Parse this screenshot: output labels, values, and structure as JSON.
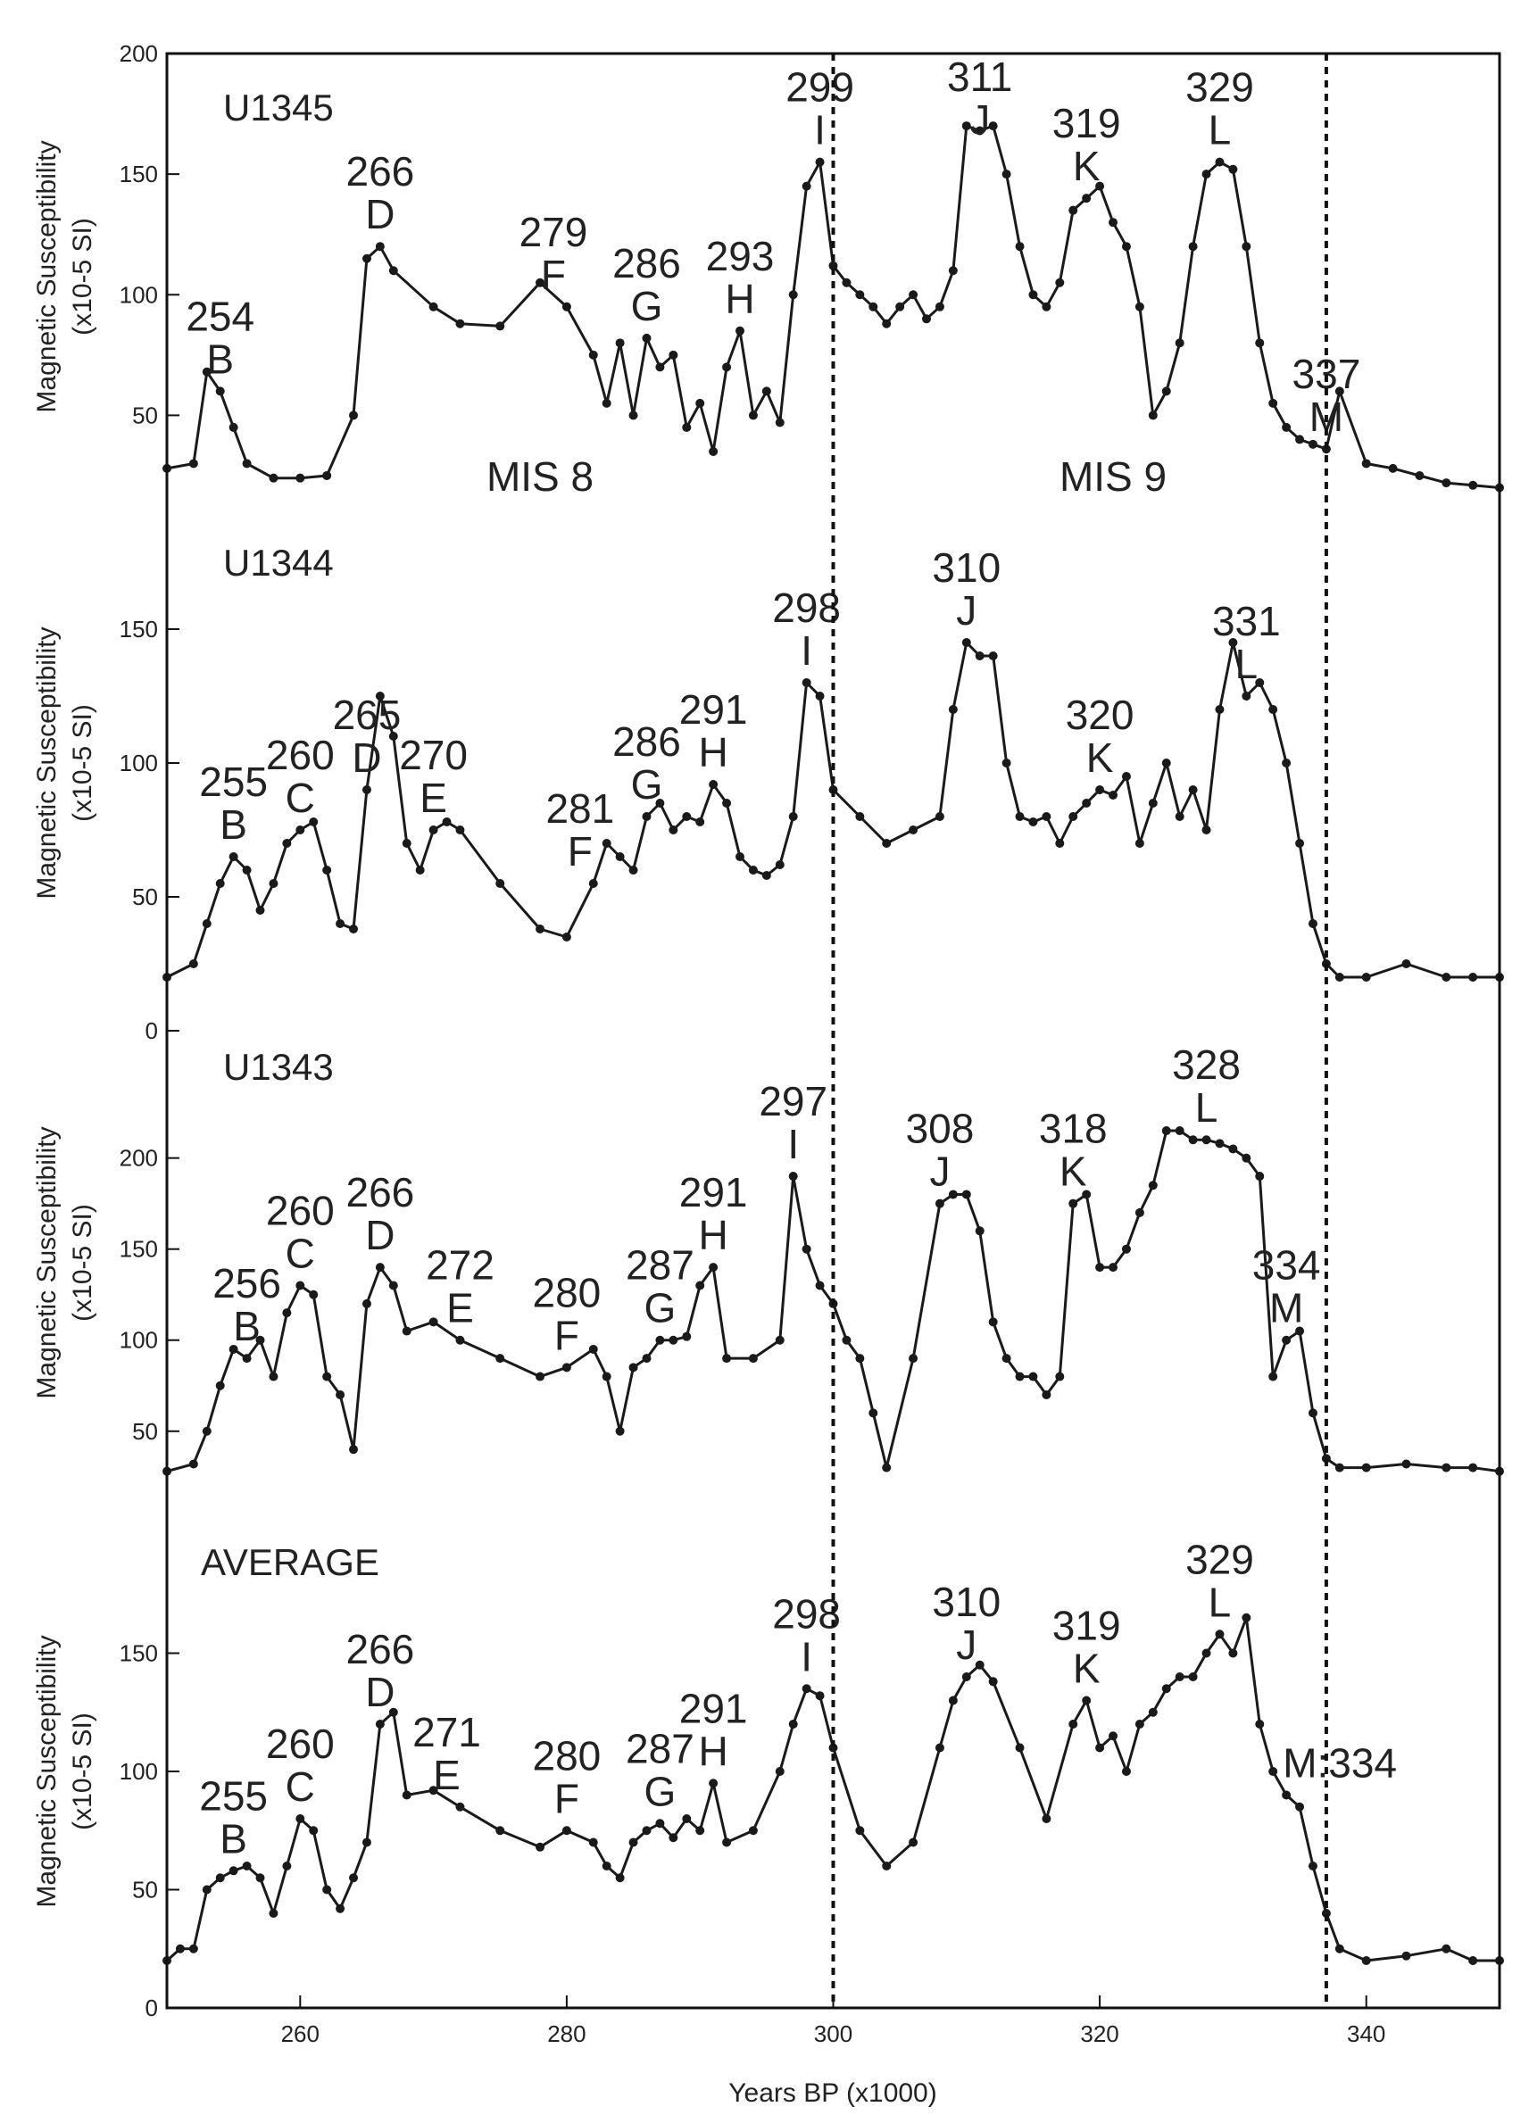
{
  "chart_data": {
    "type": "line",
    "xlabel": "Years BP (x1000)",
    "xlim": [
      250,
      350
    ],
    "xticks": [
      260,
      280,
      300,
      320,
      340
    ],
    "vlines": [
      300,
      337
    ],
    "mis_labels": [
      {
        "text": "MIS 8",
        "x": 278
      },
      {
        "text": "MIS 9",
        "x": 321
      }
    ],
    "panels": [
      {
        "site": "U1345",
        "ylabel": [
          "Magnetic Susceptibility",
          "(x10-5 SI)"
        ],
        "ylim": [
          15,
          200
        ],
        "yticks": [
          50,
          100,
          150,
          200
        ],
        "x": [
          250,
          252,
          253,
          254,
          255,
          256,
          258,
          260,
          262,
          264,
          265,
          266,
          267,
          270,
          272,
          275,
          278,
          280,
          282,
          283,
          284,
          285,
          286,
          287,
          288,
          289,
          290,
          291,
          292,
          293,
          294,
          295,
          296,
          297,
          298,
          299,
          300,
          301,
          302,
          303,
          304,
          305,
          306,
          307,
          308,
          309,
          310,
          311,
          312,
          313,
          314,
          315,
          316,
          317,
          318,
          319,
          320,
          321,
          322,
          323,
          324,
          325,
          326,
          327,
          328,
          329,
          330,
          331,
          332,
          333,
          334,
          335,
          336,
          337,
          338,
          340,
          342,
          344,
          346,
          348,
          350
        ],
        "values": [
          28,
          30,
          68,
          60,
          45,
          30,
          24,
          24,
          25,
          50,
          115,
          120,
          110,
          95,
          88,
          87,
          105,
          95,
          75,
          55,
          80,
          50,
          82,
          70,
          75,
          45,
          55,
          35,
          70,
          85,
          50,
          60,
          47,
          100,
          145,
          155,
          112,
          105,
          100,
          95,
          88,
          95,
          100,
          90,
          95,
          110,
          170,
          168,
          170,
          150,
          120,
          100,
          95,
          105,
          135,
          140,
          145,
          130,
          120,
          95,
          50,
          60,
          80,
          120,
          150,
          155,
          152,
          120,
          80,
          55,
          45,
          40,
          38,
          36,
          60,
          30,
          28,
          25,
          22,
          21,
          20
        ],
        "annotations": [
          {
            "num": "254",
            "letter": "B",
            "x": 254
          },
          {
            "num": "266",
            "letter": "D",
            "x": 266
          },
          {
            "num": "279",
            "letter": "F",
            "x": 279
          },
          {
            "num": "286",
            "letter": "G",
            "x": 286
          },
          {
            "num": "293",
            "letter": "H",
            "x": 293
          },
          {
            "num": "299",
            "letter": "I",
            "x": 299
          },
          {
            "num": "311",
            "letter": "J",
            "x": 311
          },
          {
            "num": "319",
            "letter": "K",
            "x": 319
          },
          {
            "num": "329",
            "letter": "L",
            "x": 329
          },
          {
            "num": "337",
            "letter": "M",
            "x": 337
          }
        ],
        "show_mis": true
      },
      {
        "site": "U1344",
        "ylabel": [
          "Magnetic Susceptibility",
          "(x10-5 SI)"
        ],
        "ylim": [
          15,
          185
        ],
        "yticks": [
          0,
          50,
          100,
          150
        ],
        "x": [
          250,
          252,
          253,
          254,
          255,
          256,
          257,
          258,
          259,
          260,
          261,
          262,
          263,
          264,
          265,
          266,
          267,
          268,
          269,
          270,
          271,
          272,
          275,
          278,
          280,
          282,
          283,
          284,
          285,
          286,
          287,
          288,
          289,
          290,
          291,
          292,
          293,
          294,
          295,
          296,
          297,
          298,
          299,
          300,
          302,
          304,
          306,
          308,
          309,
          310,
          311,
          312,
          313,
          314,
          315,
          316,
          317,
          318,
          319,
          320,
          321,
          322,
          323,
          324,
          325,
          326,
          327,
          328,
          329,
          330,
          331,
          332,
          333,
          334,
          335,
          336,
          337,
          338,
          340,
          343,
          346,
          348,
          350
        ],
        "values": [
          20,
          25,
          40,
          55,
          65,
          60,
          45,
          55,
          70,
          75,
          78,
          60,
          40,
          38,
          90,
          125,
          110,
          70,
          60,
          75,
          78,
          75,
          55,
          38,
          35,
          55,
          70,
          65,
          60,
          80,
          85,
          75,
          80,
          78,
          92,
          85,
          65,
          60,
          58,
          62,
          80,
          130,
          125,
          90,
          80,
          70,
          75,
          80,
          120,
          145,
          140,
          140,
          100,
          80,
          78,
          80,
          70,
          80,
          85,
          90,
          88,
          95,
          70,
          85,
          100,
          80,
          90,
          75,
          120,
          145,
          125,
          130,
          120,
          100,
          70,
          40,
          25,
          20,
          20,
          25,
          20,
          20,
          20
        ],
        "annotations": [
          {
            "num": "255",
            "letter": "B",
            "x": 255
          },
          {
            "num": "260",
            "letter": "C",
            "x": 260
          },
          {
            "num": "265",
            "letter": "D",
            "x": 265
          },
          {
            "num": "270",
            "letter": "E",
            "x": 270
          },
          {
            "num": "281",
            "letter": "F",
            "x": 281
          },
          {
            "num": "286",
            "letter": "G",
            "x": 286
          },
          {
            "num": "291",
            "letter": "H",
            "x": 291
          },
          {
            "num": "298",
            "letter": "I",
            "x": 298
          },
          {
            "num": "310",
            "letter": "J",
            "x": 310
          },
          {
            "num": "320",
            "letter": "K",
            "x": 320
          },
          {
            "num": "331",
            "letter": "L",
            "x": 331
          }
        ],
        "show_mis": false
      },
      {
        "site": "U1343",
        "ylabel": [
          "Magnetic Susceptibility",
          "(x10-5 SI)"
        ],
        "ylim": [
          20,
          265
        ],
        "yticks": [
          50,
          100,
          150,
          200
        ],
        "x": [
          250,
          252,
          253,
          254,
          255,
          256,
          257,
          258,
          259,
          260,
          261,
          262,
          263,
          264,
          265,
          266,
          267,
          268,
          270,
          272,
          275,
          278,
          280,
          282,
          283,
          284,
          285,
          286,
          287,
          288,
          289,
          290,
          291,
          292,
          294,
          296,
          297,
          298,
          299,
          300,
          301,
          302,
          303,
          304,
          306,
          308,
          309,
          310,
          311,
          312,
          313,
          314,
          315,
          316,
          317,
          318,
          319,
          320,
          321,
          322,
          323,
          324,
          325,
          326,
          327,
          328,
          329,
          330,
          331,
          332,
          333,
          334,
          335,
          336,
          337,
          338,
          340,
          343,
          346,
          348,
          350
        ],
        "values": [
          28,
          32,
          50,
          75,
          95,
          90,
          100,
          80,
          115,
          130,
          125,
          80,
          70,
          40,
          120,
          140,
          130,
          105,
          110,
          100,
          90,
          80,
          85,
          95,
          80,
          50,
          85,
          90,
          100,
          100,
          102,
          130,
          140,
          90,
          90,
          100,
          190,
          150,
          130,
          120,
          100,
          90,
          60,
          30,
          90,
          175,
          180,
          180,
          160,
          110,
          90,
          80,
          80,
          70,
          80,
          175,
          180,
          140,
          140,
          150,
          170,
          185,
          215,
          215,
          210,
          210,
          208,
          205,
          200,
          190,
          80,
          100,
          105,
          60,
          35,
          30,
          30,
          32,
          30,
          30,
          28
        ],
        "annotations": [
          {
            "num": "256",
            "letter": "B",
            "x": 256
          },
          {
            "num": "260",
            "letter": "C",
            "x": 260
          },
          {
            "num": "266",
            "letter": "D",
            "x": 266
          },
          {
            "num": "272",
            "letter": "E",
            "x": 272
          },
          {
            "num": "280",
            "letter": "F",
            "x": 280
          },
          {
            "num": "287",
            "letter": "G",
            "x": 287
          },
          {
            "num": "291",
            "letter": "H",
            "x": 291
          },
          {
            "num": "297",
            "letter": "I",
            "x": 297
          },
          {
            "num": "308",
            "letter": "J",
            "x": 308
          },
          {
            "num": "318",
            "letter": "K",
            "x": 318
          },
          {
            "num": "328",
            "letter": "L",
            "x": 328
          },
          {
            "num": "334",
            "letter": "M",
            "x": 334
          }
        ],
        "show_mis": false
      },
      {
        "site": "AVERAGE",
        "ylabel": [
          "Magnetic Susceptibility",
          "(x10-5 SI)"
        ],
        "ylim": [
          0,
          200
        ],
        "yticks": [
          0,
          50,
          100,
          150
        ],
        "x": [
          250,
          251,
          252,
          253,
          254,
          255,
          256,
          257,
          258,
          259,
          260,
          261,
          262,
          263,
          264,
          265,
          266,
          267,
          268,
          270,
          272,
          275,
          278,
          280,
          282,
          283,
          284,
          285,
          286,
          287,
          288,
          289,
          290,
          291,
          292,
          294,
          296,
          297,
          298,
          299,
          300,
          302,
          304,
          306,
          308,
          309,
          310,
          311,
          312,
          314,
          316,
          318,
          319,
          320,
          321,
          322,
          323,
          324,
          325,
          326,
          327,
          328,
          329,
          330,
          331,
          332,
          333,
          334,
          335,
          336,
          337,
          338,
          340,
          343,
          346,
          348,
          350
        ],
        "values": [
          20,
          25,
          25,
          50,
          55,
          58,
          60,
          55,
          40,
          60,
          80,
          75,
          50,
          42,
          55,
          70,
          120,
          125,
          90,
          92,
          85,
          75,
          68,
          75,
          70,
          60,
          55,
          70,
          75,
          78,
          72,
          80,
          75,
          95,
          70,
          75,
          100,
          120,
          135,
          132,
          110,
          75,
          60,
          70,
          110,
          130,
          140,
          145,
          138,
          110,
          80,
          120,
          130,
          110,
          115,
          100,
          120,
          125,
          135,
          140,
          140,
          150,
          158,
          150,
          165,
          120,
          100,
          90,
          85,
          60,
          40,
          25,
          20,
          22,
          25,
          20,
          20
        ],
        "annotations": [
          {
            "num": "255",
            "letter": "B",
            "x": 255
          },
          {
            "num": "260",
            "letter": "C",
            "x": 260
          },
          {
            "num": "266",
            "letter": "D",
            "x": 266
          },
          {
            "num": "271",
            "letter": "E",
            "x": 271
          },
          {
            "num": "280",
            "letter": "F",
            "x": 280
          },
          {
            "num": "287",
            "letter": "G",
            "x": 287
          },
          {
            "num": "291",
            "letter": "H",
            "x": 291
          },
          {
            "num": "298",
            "letter": "I",
            "x": 298
          },
          {
            "num": "310",
            "letter": "J",
            "x": 310
          },
          {
            "num": "319",
            "letter": "K",
            "x": 319
          },
          {
            "num": "329",
            "letter": "L",
            "x": 329
          },
          {
            "num": "334",
            "letter": "M",
            "x": 334,
            "inline": true
          }
        ],
        "show_mis": false
      }
    ]
  }
}
